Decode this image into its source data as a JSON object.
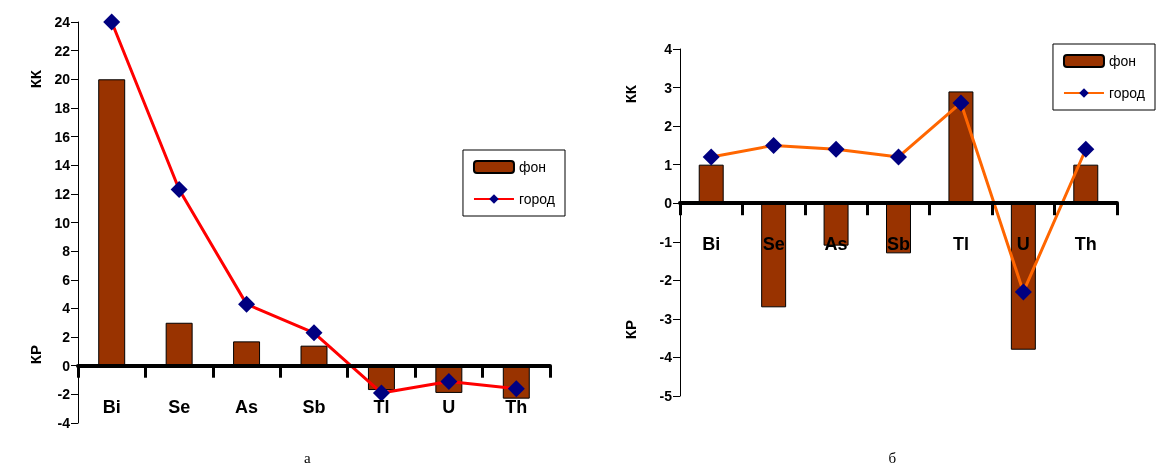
{
  "chart_data": [
    {
      "type": "bar",
      "ylabel": "КК",
      "annotations": [
        "КР",
        "а"
      ],
      "categories": [
        "Bi",
        "Se",
        "As",
        "Sb",
        "Tl",
        "U",
        "Th"
      ],
      "ylim": [
        -4,
        24
      ],
      "yticks": [
        -4,
        -2,
        0,
        2,
        4,
        6,
        8,
        10,
        12,
        14,
        16,
        18,
        20,
        22,
        24
      ],
      "legend": "right",
      "marker": "diamond",
      "series": [
        {
          "name": "фон",
          "type": "bar",
          "color": "#993300",
          "values": [
            20,
            3,
            1.7,
            1.4,
            -1.7,
            -1.9,
            -2.3
          ]
        },
        {
          "name": "город",
          "type": "line",
          "color": "#ff0000",
          "colors": [
            "#000080",
            "#000080",
            "#000080",
            "#000080",
            "#000080",
            "#000080",
            "#000080"
          ],
          "values": [
            24,
            12.3,
            4.3,
            2.3,
            -1.9,
            -1.1,
            -1.6
          ]
        }
      ]
    },
    {
      "type": "bar",
      "ylabel": "КК",
      "annotations": [
        "КР",
        "б"
      ],
      "categories": [
        "Bi",
        "Se",
        "As",
        "Sb",
        "Tl",
        "U",
        "Th"
      ],
      "ylim": [
        -5,
        4
      ],
      "yticks": [
        -5,
        -4,
        -3,
        -2,
        -1,
        0,
        1,
        2,
        3,
        4
      ],
      "legend": "top right",
      "marker": "diamond",
      "series": [
        {
          "name": "фон",
          "type": "bar",
          "color": "#993300",
          "values": [
            1,
            -2.7,
            -1.1,
            -1.3,
            2.9,
            -3.8,
            1
          ]
        },
        {
          "name": "город",
          "type": "line",
          "color": "#ff6600",
          "colors": [
            "#000080",
            "#000080",
            "#000080",
            "#000080",
            "#000080",
            "#000080",
            "#000080"
          ],
          "values": [
            1.2,
            1.5,
            1.4,
            1.2,
            2.6,
            -2.3,
            1.4
          ]
        }
      ]
    }
  ]
}
